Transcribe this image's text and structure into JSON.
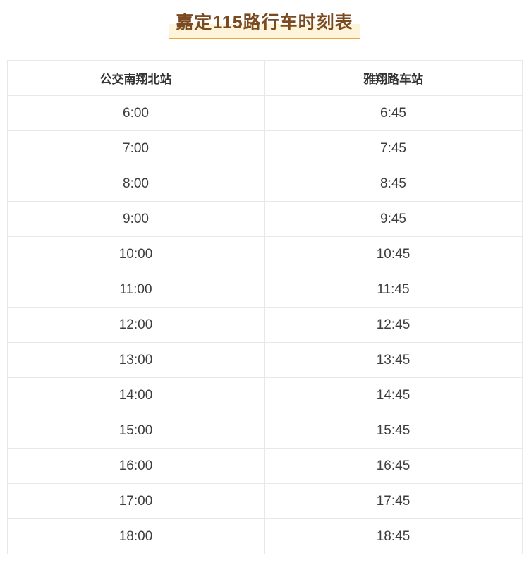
{
  "title": "嘉定115路行车时刻表",
  "table": {
    "headers": [
      "公交南翔北站",
      "雅翔路车站"
    ],
    "rows": [
      [
        "6:00",
        "6:45"
      ],
      [
        "7:00",
        "7:45"
      ],
      [
        "8:00",
        "8:45"
      ],
      [
        "9:00",
        "9:45"
      ],
      [
        "10:00",
        "10:45"
      ],
      [
        "11:00",
        "11:45"
      ],
      [
        "12:00",
        "12:45"
      ],
      [
        "13:00",
        "13:45"
      ],
      [
        "14:00",
        "14:45"
      ],
      [
        "15:00",
        "15:45"
      ],
      [
        "16:00",
        "16:45"
      ],
      [
        "17:00",
        "17:45"
      ],
      [
        "18:00",
        "18:45"
      ]
    ]
  },
  "colors": {
    "title_text": "#7a4a21",
    "title_highlight": "#fdf4da",
    "title_underline": "#f0a43c",
    "border": "#e8e8e8",
    "header_text": "#333333",
    "cell_text": "#3d3d3d",
    "page_bg": "#ffffff"
  }
}
